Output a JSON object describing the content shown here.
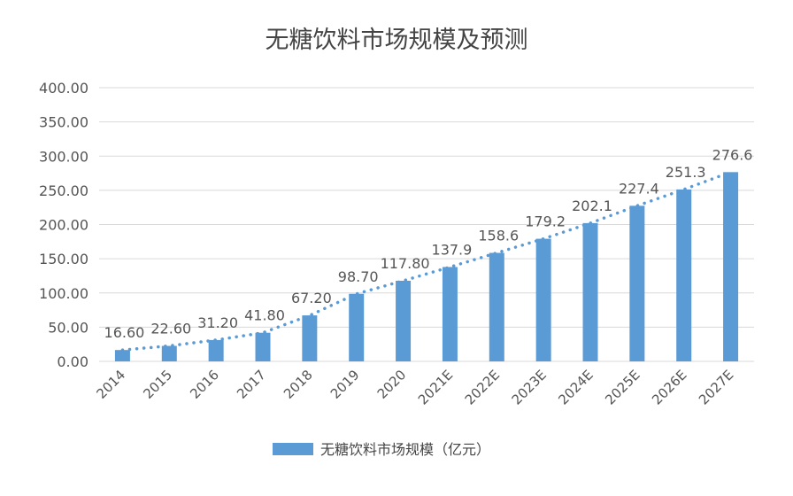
{
  "chart_data": {
    "type": "bar",
    "title": "无糖饮料市场规模及预测",
    "categories": [
      "2014",
      "2015",
      "2016",
      "2017",
      "2018",
      "2019",
      "2020",
      "2021E",
      "2022E",
      "2023E",
      "2024E",
      "2025E",
      "2026E",
      "2027E"
    ],
    "series": [
      {
        "name": "无糖饮料市场规模（亿元）",
        "values": [
          16.6,
          22.6,
          31.2,
          41.8,
          67.2,
          98.7,
          117.8,
          137.9,
          158.6,
          179.2,
          202.1,
          227.4,
          251.3,
          276.6
        ],
        "labels": [
          "16.60",
          "22.60",
          "31.20",
          "41.80",
          "67.20",
          "98.70",
          "117.80",
          "137.9",
          "158.6",
          "179.2",
          "202.1",
          "227.4",
          "251.3",
          "276.6"
        ]
      }
    ],
    "yticks": [
      "0.00",
      "50.00",
      "100.00",
      "150.00",
      "200.00",
      "250.00",
      "300.00",
      "350.00",
      "400.00"
    ],
    "ylim": [
      0,
      400
    ],
    "grid": true,
    "trendline": "dotted",
    "legend_position": "bottom",
    "colors": {
      "bar": "#5b9bd5",
      "trend": "#5b9bd5",
      "grid": "#d9d9d9"
    }
  }
}
